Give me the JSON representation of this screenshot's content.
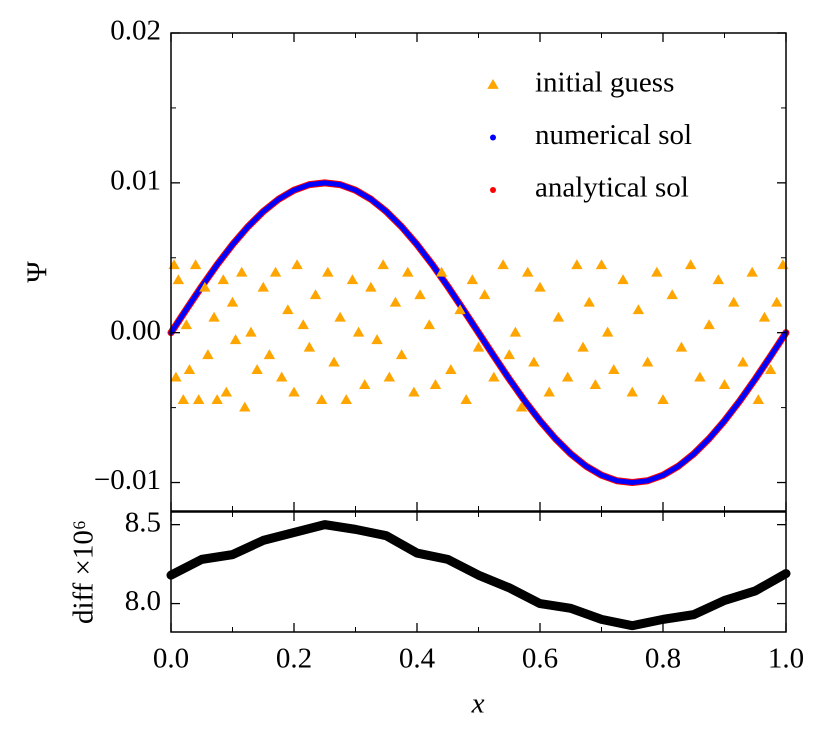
{
  "chart_data": [
    {
      "type": "scatter",
      "ylabel": "Ψ",
      "xlim": [
        0,
        1
      ],
      "ylim": [
        -0.0119,
        0.02
      ],
      "xticks": [
        0,
        0.2,
        0.4,
        0.6,
        0.8,
        1
      ],
      "show_xticklabels": false,
      "xminorticks": [
        0.1,
        0.3,
        0.5,
        0.7,
        0.9
      ],
      "yticks": [
        {
          "value": -0.01,
          "label": "−0.01"
        },
        {
          "value": 0,
          "label": "0.00"
        },
        0.01,
        0.02
      ],
      "yminorticks": [
        -0.005,
        0.005,
        0.015
      ],
      "legend": "upper right",
      "series": [
        {
          "name": "initial guess",
          "color": "#ffa500",
          "marker": "triangle",
          "connected": false,
          "x": [
            0.005,
            0.008,
            0.012,
            0.02,
            0.025,
            0.03,
            0.04,
            0.045,
            0.055,
            0.06,
            0.07,
            0.075,
            0.085,
            0.09,
            0.1,
            0.105,
            0.115,
            0.12,
            0.13,
            0.14,
            0.15,
            0.16,
            0.17,
            0.18,
            0.19,
            0.2,
            0.205,
            0.215,
            0.225,
            0.235,
            0.245,
            0.255,
            0.265,
            0.275,
            0.285,
            0.295,
            0.305,
            0.315,
            0.325,
            0.335,
            0.345,
            0.355,
            0.365,
            0.375,
            0.385,
            0.395,
            0.405,
            0.42,
            0.43,
            0.44,
            0.455,
            0.47,
            0.48,
            0.49,
            0.5,
            0.51,
            0.525,
            0.54,
            0.55,
            0.56,
            0.57,
            0.58,
            0.59,
            0.6,
            0.615,
            0.63,
            0.645,
            0.66,
            0.67,
            0.68,
            0.69,
            0.7,
            0.71,
            0.72,
            0.735,
            0.75,
            0.76,
            0.775,
            0.79,
            0.8,
            0.815,
            0.83,
            0.845,
            0.86,
            0.875,
            0.89,
            0.9,
            0.915,
            0.93,
            0.945,
            0.955,
            0.965,
            0.975,
            0.985,
            0.995
          ],
          "values": [
            0.0045,
            -0.003,
            0.0035,
            -0.0045,
            0.0005,
            -0.0025,
            0.0045,
            -0.0045,
            0.003,
            -0.0015,
            0.001,
            -0.0045,
            0.0035,
            -0.004,
            0.002,
            -0.0005,
            0.004,
            -0.005,
            0,
            -0.0025,
            0.003,
            -0.0015,
            0.004,
            -0.003,
            0.0015,
            -0.004,
            0.0045,
            0.0005,
            -0.001,
            0.0025,
            -0.0045,
            0.004,
            -0.002,
            0.001,
            -0.0045,
            0.0035,
            0,
            -0.0035,
            0.003,
            -0.0005,
            0.0045,
            -0.003,
            0.002,
            -0.0015,
            0.004,
            -0.004,
            0.0025,
            0.0005,
            -0.0035,
            0.004,
            -0.0025,
            0.0015,
            -0.0045,
            0.0035,
            -0.001,
            0.0025,
            -0.003,
            0.0045,
            -0.0015,
            0,
            -0.005,
            0.004,
            -0.002,
            0.003,
            -0.004,
            0.001,
            -0.003,
            0.0045,
            -0.001,
            0.002,
            -0.0035,
            0.0045,
            0,
            -0.0025,
            0.0035,
            -0.004,
            0.0015,
            -0.002,
            0.004,
            -0.0045,
            0.0025,
            -0.001,
            0.0045,
            -0.003,
            0.0005,
            0.0035,
            -0.0035,
            0.002,
            -0.002,
            0.004,
            -0.0045,
            0.001,
            -0.0025,
            0.002,
            0.0045
          ]
        },
        {
          "name": "numerical sol",
          "color": "#0000ff",
          "marker": "circle",
          "connected": true,
          "width": 5,
          "x": [
            0,
            0.025,
            0.05,
            0.075,
            0.1,
            0.125,
            0.15,
            0.175,
            0.2,
            0.225,
            0.25,
            0.275,
            0.3,
            0.325,
            0.35,
            0.375,
            0.4,
            0.425,
            0.45,
            0.475,
            0.5,
            0.525,
            0.55,
            0.575,
            0.6,
            0.625,
            0.65,
            0.675,
            0.7,
            0.725,
            0.75,
            0.775,
            0.8,
            0.825,
            0.85,
            0.875,
            0.9,
            0.925,
            0.95,
            0.975,
            1
          ],
          "values": [
            0,
            0.00156,
            0.00309,
            0.00454,
            0.00588,
            0.00707,
            0.00809,
            0.00891,
            0.00951,
            0.00988,
            0.01,
            0.00988,
            0.00951,
            0.00891,
            0.00809,
            0.00707,
            0.00588,
            0.00454,
            0.00309,
            0.00156,
            0,
            -0.00156,
            -0.00309,
            -0.00454,
            -0.00588,
            -0.00707,
            -0.00809,
            -0.00891,
            -0.00951,
            -0.00988,
            -0.01,
            -0.00988,
            -0.00951,
            -0.00891,
            -0.00809,
            -0.00707,
            -0.00588,
            -0.00454,
            -0.00309,
            -0.00156,
            0
          ]
        },
        {
          "name": "analytical sol",
          "color": "#ff0000",
          "marker": "circle",
          "connected": true,
          "width": 7,
          "x": [
            0,
            0.025,
            0.05,
            0.075,
            0.1,
            0.125,
            0.15,
            0.175,
            0.2,
            0.225,
            0.25,
            0.275,
            0.3,
            0.325,
            0.35,
            0.375,
            0.4,
            0.425,
            0.45,
            0.475,
            0.5,
            0.525,
            0.55,
            0.575,
            0.6,
            0.625,
            0.65,
            0.675,
            0.7,
            0.725,
            0.75,
            0.775,
            0.8,
            0.825,
            0.85,
            0.875,
            0.9,
            0.925,
            0.95,
            0.975,
            1
          ],
          "values": [
            0,
            0.00156,
            0.00309,
            0.00454,
            0.00588,
            0.00707,
            0.00809,
            0.00891,
            0.00951,
            0.00988,
            0.01,
            0.00988,
            0.00951,
            0.00891,
            0.00809,
            0.00707,
            0.00588,
            0.00454,
            0.00309,
            0.00156,
            0,
            -0.00156,
            -0.00309,
            -0.00454,
            -0.00588,
            -0.00707,
            -0.00809,
            -0.00891,
            -0.00951,
            -0.00988,
            -0.01,
            -0.00988,
            -0.00951,
            -0.00891,
            -0.00809,
            -0.00707,
            -0.00588,
            -0.00454,
            -0.00309,
            -0.00156,
            0
          ]
        }
      ]
    },
    {
      "type": "line",
      "xlabel": "x",
      "ylabel": "diff ×10⁶",
      "xlim": [
        0,
        1
      ],
      "ylim": [
        7.82,
        8.58
      ],
      "xticks": [
        {
          "value": 0,
          "label": "0.0"
        },
        0.2,
        0.4,
        0.6,
        0.8,
        {
          "value": 1,
          "label": "1.0"
        }
      ],
      "show_xticklabels": true,
      "xminorticks": [
        0.1,
        0.3,
        0.5,
        0.7,
        0.9
      ],
      "yticks": [
        {
          "value": 8,
          "label": "8.0"
        },
        8.5
      ],
      "yminorticks": [],
      "series": [
        {
          "color": "#000000",
          "width": 9,
          "x": [
            0,
            0.05,
            0.1,
            0.15,
            0.2,
            0.25,
            0.3,
            0.35,
            0.4,
            0.45,
            0.5,
            0.55,
            0.6,
            0.65,
            0.7,
            0.75,
            0.8,
            0.85,
            0.9,
            0.95,
            1
          ],
          "values": [
            8.18,
            8.28,
            8.31,
            8.4,
            8.45,
            8.5,
            8.47,
            8.43,
            8.32,
            8.28,
            8.18,
            8.1,
            8.0,
            7.97,
            7.9,
            7.86,
            7.9,
            7.93,
            8.02,
            8.08,
            8.19
          ]
        }
      ]
    }
  ]
}
